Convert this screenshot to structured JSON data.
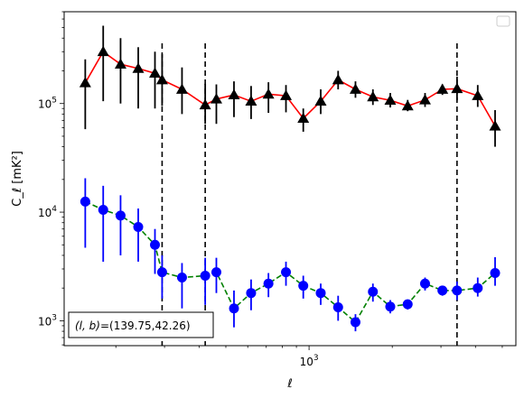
{
  "chart_data": {
    "type": "scatter",
    "title": "",
    "xlabel": "ℓ",
    "ylabel": "C_ℓ [mK²]",
    "xscale": "log",
    "yscale": "log",
    "xlim": [
      130,
      5600
    ],
    "ylim": [
      590,
      700000
    ],
    "xticks": [
      {
        "value": 1000,
        "base": "10",
        "exp": "3"
      }
    ],
    "yticks": [
      {
        "value": 1000,
        "base": "10",
        "exp": "3"
      },
      {
        "value": 10000,
        "base": "10",
        "exp": "4"
      },
      {
        "value": 100000,
        "base": "10",
        "exp": "5"
      }
    ],
    "grid": false,
    "legend_placement": "upper-right",
    "legend_entries": [],
    "vlines": [
      294,
      421,
      3430
    ],
    "annotation": {
      "prefix": "(l, b)",
      "value": "=(139.75,42.26)"
    },
    "x": [
      155,
      180,
      208,
      241,
      277,
      294,
      347,
      421,
      462,
      535,
      617,
      713,
      825,
      953,
      1102,
      1274,
      1472,
      1702,
      1967,
      2274,
      2628,
      3037,
      3430,
      4076,
      4710
    ],
    "series": [
      {
        "style": "black triangles with red solid line",
        "color": "#ff0000",
        "marker_color": "#000000",
        "marker": "triangle",
        "line": "solid",
        "values": [
          155000,
          300000,
          230000,
          210000,
          190000,
          165000,
          135000,
          97000,
          110000,
          120000,
          105000,
          122000,
          118000,
          73000,
          105000,
          165000,
          135000,
          115000,
          107000,
          95000,
          108000,
          135000,
          137000,
          118000,
          62000
        ],
        "err_lower": [
          97000,
          195000,
          130000,
          120000,
          100000,
          70000,
          55000,
          32000,
          45000,
          45000,
          33000,
          40000,
          35000,
          18000,
          25000,
          30000,
          22000,
          18000,
          15000,
          10000,
          15000,
          15000,
          30000,
          25000,
          22000
        ],
        "err_upper": [
          100000,
          220000,
          170000,
          120000,
          110000,
          120000,
          80000,
          55000,
          40000,
          40000,
          40000,
          35000,
          30000,
          17000,
          30000,
          35000,
          25000,
          20000,
          18000,
          13000,
          17000,
          15000,
          40000,
          30000,
          25000
        ]
      },
      {
        "style": "blue circles with green dashed line",
        "color": "#008000",
        "marker_color": "#0000ff",
        "marker": "circle",
        "line": "dashed",
        "values": [
          12500,
          10500,
          9300,
          7300,
          5000,
          2800,
          2500,
          2600,
          2800,
          1300,
          1800,
          2200,
          2800,
          2100,
          1800,
          1330,
          970,
          1850,
          1350,
          1420,
          2200,
          1900,
          1900,
          2000,
          2750
        ],
        "err_lower": [
          7800,
          7000,
          5300,
          3800,
          2300,
          1200,
          1200,
          1200,
          1000,
          430,
          550,
          550,
          700,
          500,
          400,
          330,
          170,
          350,
          180,
          150,
          300,
          200,
          350,
          330,
          650
        ],
        "err_upper": [
          8000,
          7000,
          5000,
          3500,
          2000,
          1200,
          900,
          1200,
          1000,
          600,
          600,
          550,
          700,
          500,
          400,
          370,
          180,
          350,
          200,
          150,
          300,
          200,
          400,
          500,
          1100
        ]
      }
    ]
  }
}
